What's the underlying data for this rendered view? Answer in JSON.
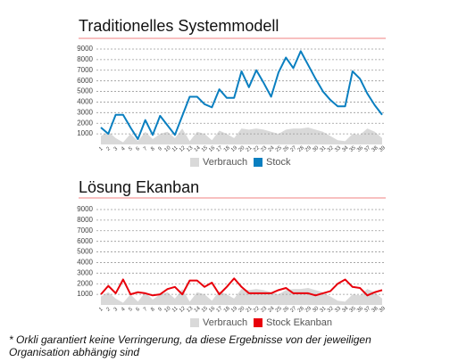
{
  "chart_data": [
    {
      "type": "line",
      "title": "Traditionelles Systemmodell",
      "categories": [
        "1",
        "2",
        "3",
        "4",
        "5",
        "6",
        "7",
        "8",
        "9",
        "10",
        "11",
        "12",
        "13",
        "14",
        "15",
        "16",
        "17",
        "18",
        "19",
        "20",
        "21",
        "22",
        "23",
        "24",
        "25",
        "26",
        "27",
        "28",
        "29",
        "30",
        "31",
        "32",
        "33",
        "34",
        "35",
        "36",
        "37",
        "38",
        "39"
      ],
      "series": [
        {
          "name": "Verbrauch",
          "color": "#d9d9d9",
          "style": "area",
          "values": [
            800,
            1200,
            600,
            200,
            1000,
            300,
            1200,
            500,
            1000,
            1200,
            600,
            1500,
            300,
            1200,
            1000,
            400,
            1300,
            1000,
            600,
            1500,
            1400,
            1500,
            1400,
            1200,
            1000,
            1400,
            1500,
            1500,
            1600,
            1400,
            1200,
            800,
            400,
            300,
            1000,
            900,
            1500,
            1200,
            600
          ]
        },
        {
          "name": "Stock",
          "color": "#0a7fc0",
          "style": "line",
          "values": [
            1600,
            1000,
            2800,
            2800,
            1600,
            500,
            2300,
            900,
            2700,
            1800,
            900,
            2700,
            4500,
            4500,
            3800,
            3500,
            5200,
            4400,
            4400,
            6900,
            5400,
            7000,
            5800,
            4500,
            6800,
            8200,
            7200,
            8800,
            7500,
            6200,
            5000,
            4200,
            3600,
            3600,
            6900,
            6200,
            4800,
            3700,
            2800
          ]
        }
      ],
      "ylim": [
        0,
        9000
      ],
      "yticks": [
        1000,
        2000,
        3000,
        4000,
        5000,
        6000,
        7000,
        8000,
        9000
      ],
      "grid": true
    },
    {
      "type": "line",
      "title": "Lösung Ekanban",
      "categories": [
        "1",
        "2",
        "3",
        "4",
        "5",
        "6",
        "7",
        "8",
        "9",
        "10",
        "11",
        "12",
        "13",
        "14",
        "15",
        "16",
        "17",
        "18",
        "19",
        "20",
        "21",
        "22",
        "23",
        "24",
        "25",
        "26",
        "27",
        "28",
        "29",
        "30",
        "31",
        "32",
        "33",
        "34",
        "35",
        "36",
        "37",
        "38",
        "39"
      ],
      "series": [
        {
          "name": "Verbrauch",
          "color": "#d9d9d9",
          "style": "area",
          "values": [
            800,
            1200,
            600,
            200,
            1000,
            300,
            1200,
            500,
            1000,
            1200,
            600,
            1500,
            300,
            1200,
            1000,
            400,
            1300,
            1000,
            600,
            1500,
            1400,
            1500,
            1400,
            1200,
            1000,
            1400,
            1500,
            1500,
            1600,
            1400,
            1200,
            800,
            400,
            300,
            1000,
            900,
            1500,
            1200,
            600
          ]
        },
        {
          "name": "Stock Ekanban",
          "color": "#e8000b",
          "style": "line",
          "values": [
            1000,
            1800,
            1100,
            2400,
            1000,
            1200,
            1100,
            900,
            1000,
            1500,
            1700,
            1000,
            2300,
            2300,
            1700,
            2100,
            1000,
            1700,
            2500,
            1700,
            1100,
            1100,
            1100,
            1100,
            1400,
            1600,
            1100,
            1100,
            1100,
            900,
            1100,
            1300,
            2000,
            2400,
            1700,
            1600,
            900,
            1200,
            1400
          ]
        }
      ],
      "ylim": [
        0,
        9000
      ],
      "yticks": [
        1000,
        2000,
        3000,
        4000,
        5000,
        6000,
        7000,
        8000,
        9000
      ],
      "grid": true
    }
  ],
  "footnote": "* Orkli garantiert keine Verringerung, da diese Ergebnisse von der jeweiligen Organisation abhängig sind"
}
